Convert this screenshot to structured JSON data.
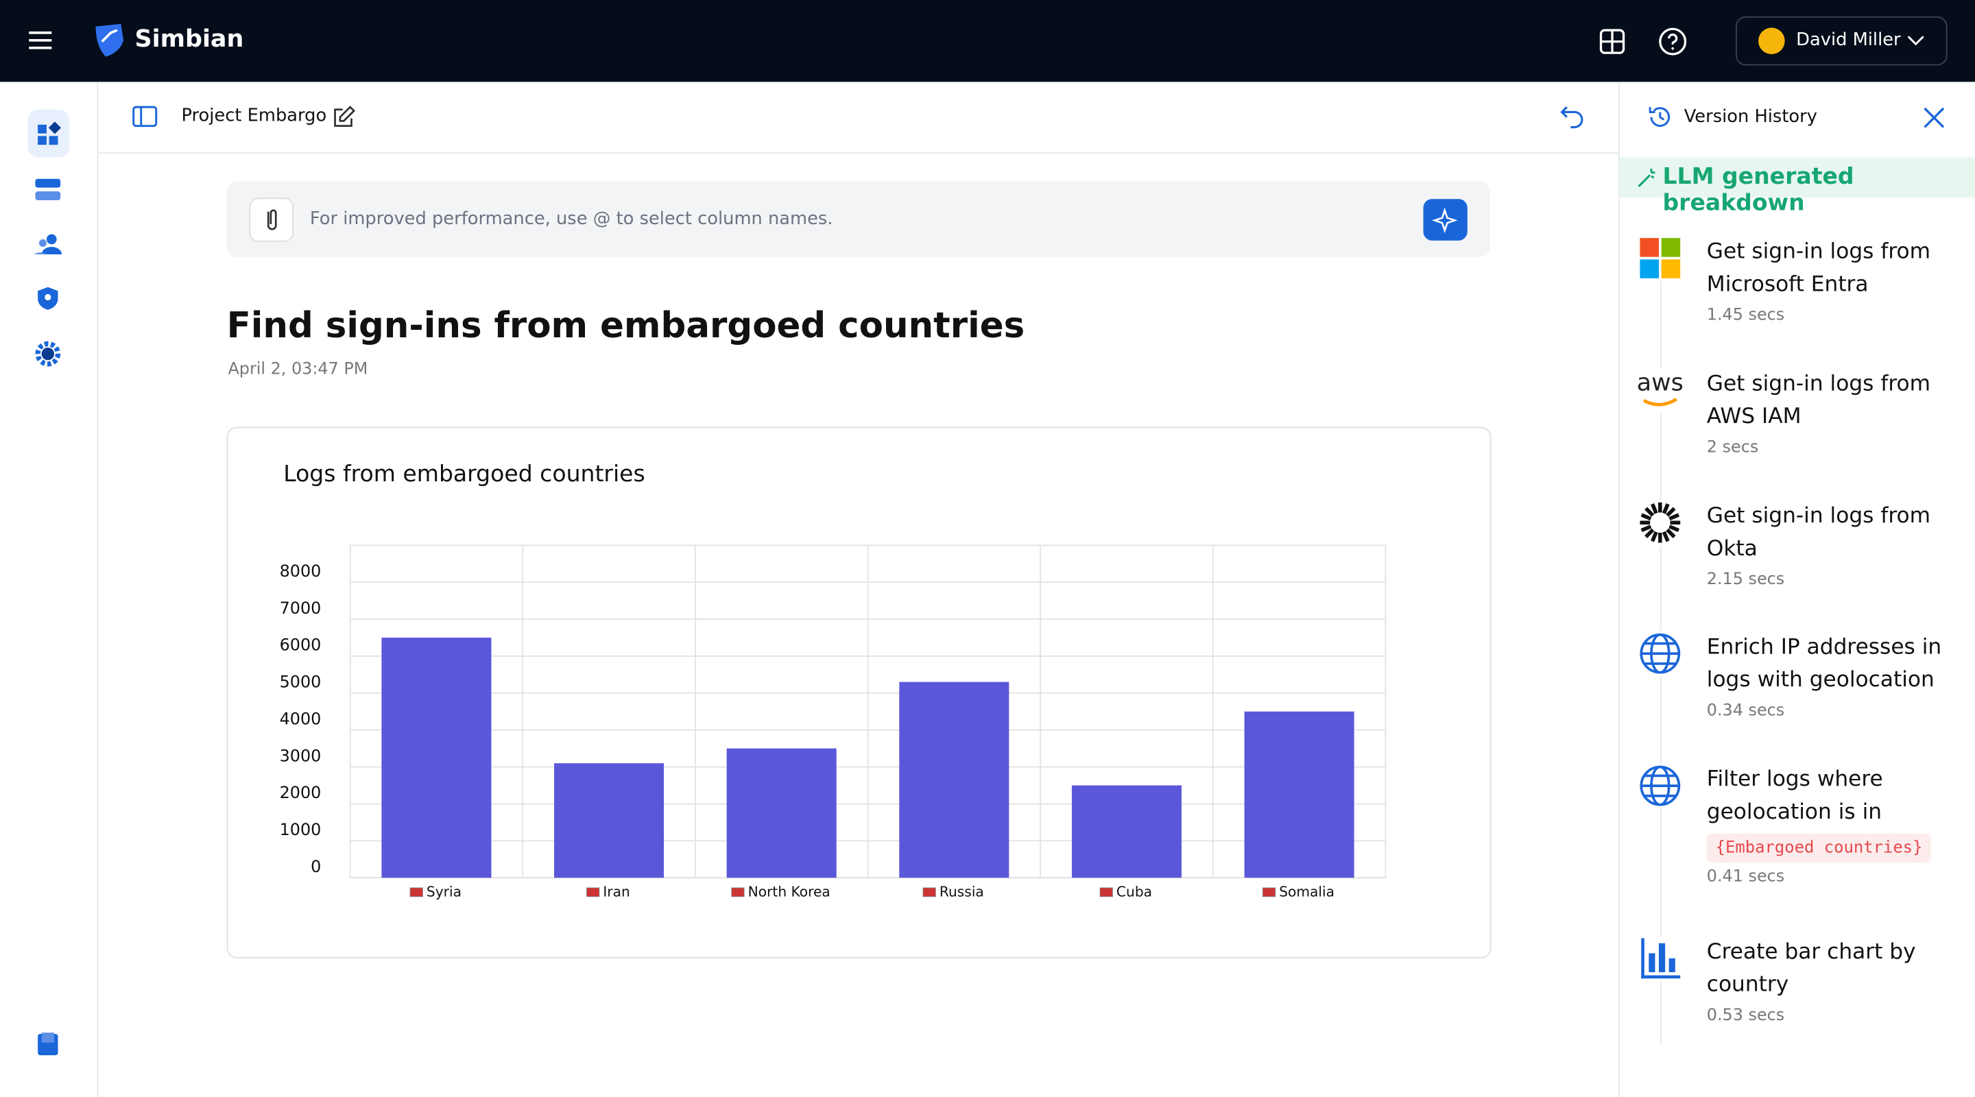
{
  "header": {
    "brand": "Simbian",
    "user": "David Miller"
  },
  "toolbar": {
    "project": "Project Embargo"
  },
  "prompt": {
    "placeholder": "For improved performance, use @ to select column names."
  },
  "report": {
    "title": "Find sign-ins from embargoed countries",
    "timestamp": "April 2, 03:47 PM"
  },
  "chart_data": {
    "type": "bar",
    "title": "Logs from embargoed countries",
    "categories": [
      "Syria",
      "Iran",
      "North Korea",
      "Russia",
      "Cuba",
      "Somalia"
    ],
    "values": [
      6500,
      3100,
      3500,
      5300,
      2500,
      4500
    ],
    "color": "#5b57d9",
    "ylim": [
      0,
      9000
    ],
    "yticks": [
      0,
      1000,
      2000,
      3000,
      4000,
      5000,
      6000,
      7000,
      8000
    ],
    "grid": true
  },
  "version_history": {
    "title": "Version History",
    "banner": "LLM generated breakdown",
    "steps": [
      {
        "title": "Get sign-in logs from Microsoft Entra",
        "time": "1.45 secs"
      },
      {
        "title": "Get sign-in logs from AWS IAM",
        "time": "2 secs"
      },
      {
        "title": "Get sign-in logs from Okta",
        "time": "2.15 secs"
      },
      {
        "title": "Enrich IP addresses in logs with geolocation",
        "time": "0.34 secs"
      },
      {
        "title": "Filter logs where geolocation is in",
        "code": "{Embargoed countries}",
        "time": "0.41 secs"
      },
      {
        "title": "Create bar chart by country",
        "time": "0.53 secs"
      }
    ]
  }
}
